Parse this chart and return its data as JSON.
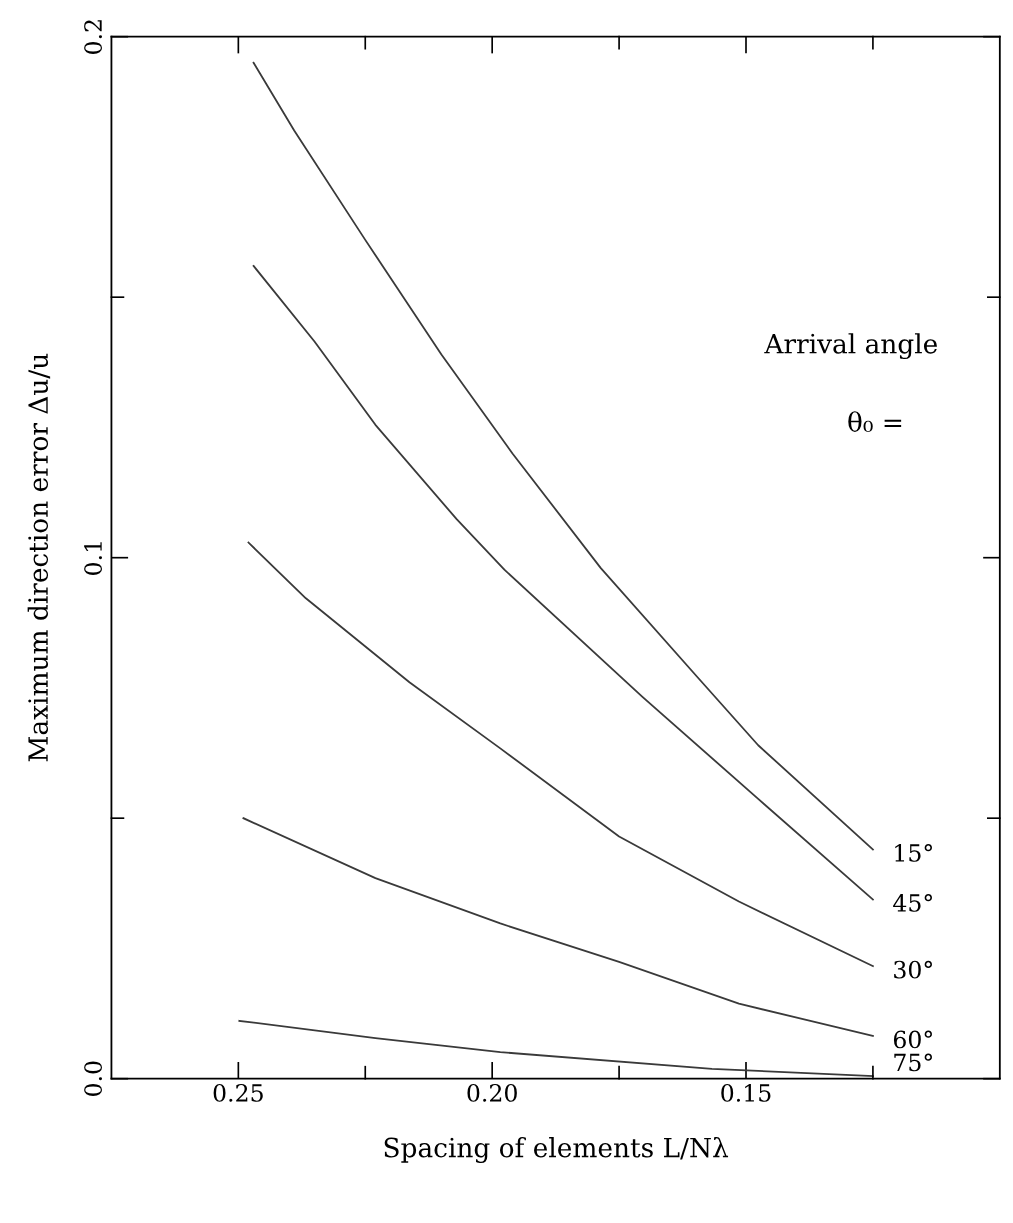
{
  "chart_data": {
    "type": "line",
    "xlabel": "Spacing of elements L/Nλ",
    "ylabel": "Maximum direction error Δu/u",
    "xlim": [
      0.275,
      0.1
    ],
    "ylim": [
      0,
      0.2
    ],
    "xticks": [
      0.25,
      {
        "value": 0.225,
        "label": null
      },
      {
        "value": 0.2,
        "label": "0.20"
      },
      {
        "value": 0.175,
        "label": null
      },
      0.15,
      {
        "value": 0.125,
        "label": null
      }
    ],
    "yticks": [
      {
        "value": 0,
        "label": "0.0"
      },
      {
        "value": 0.05,
        "label": null
      },
      0.1,
      {
        "value": 0.15,
        "label": null
      },
      0.2
    ],
    "grid": false,
    "legend": false,
    "marker": "none",
    "line_style": "solid",
    "annotations": [
      "Arrival angle",
      "θ₀ ="
    ],
    "series": [
      {
        "name": "15°",
        "color": "#3a3a3a",
        "x": [
          0.247,
          0.239,
          0.225,
          0.21,
          0.196,
          0.1786,
          0.1595,
          0.1476,
          0.125
        ],
        "values": [
          0.195,
          0.182,
          0.161,
          0.139,
          0.12,
          0.098,
          0.077,
          0.064,
          0.044
        ]
      },
      {
        "name": "45°",
        "color": "#3a3a3a",
        "x": [
          0.247,
          0.235,
          0.223,
          0.207,
          0.1976,
          0.1704,
          0.1476,
          0.125
        ],
        "values": [
          0.156,
          0.1415,
          0.1255,
          0.1074,
          0.0977,
          0.0733,
          0.0537,
          0.0344
        ]
      },
      {
        "name": "30°",
        "color": "#3a3a3a",
        "x": [
          0.248,
          0.2367,
          0.2163,
          0.1984,
          0.175,
          0.1514,
          0.125
        ],
        "values": [
          0.1029,
          0.0922,
          0.0761,
          0.0634,
          0.0465,
          0.034,
          0.0216
        ]
      },
      {
        "name": "60°",
        "color": "#3a3a3a",
        "x": [
          0.249,
          0.223,
          0.1984,
          0.175,
          0.1514,
          0.125
        ],
        "values": [
          0.05,
          0.0385,
          0.0298,
          0.0224,
          0.0144,
          0.0082
        ]
      },
      {
        "name": "75°",
        "color": "#3a3a3a",
        "x": [
          0.2498,
          0.223,
          0.1984,
          0.1567,
          0.125
        ],
        "values": [
          0.0111,
          0.0078,
          0.0051,
          0.0019,
          0.0005
        ]
      }
    ]
  }
}
